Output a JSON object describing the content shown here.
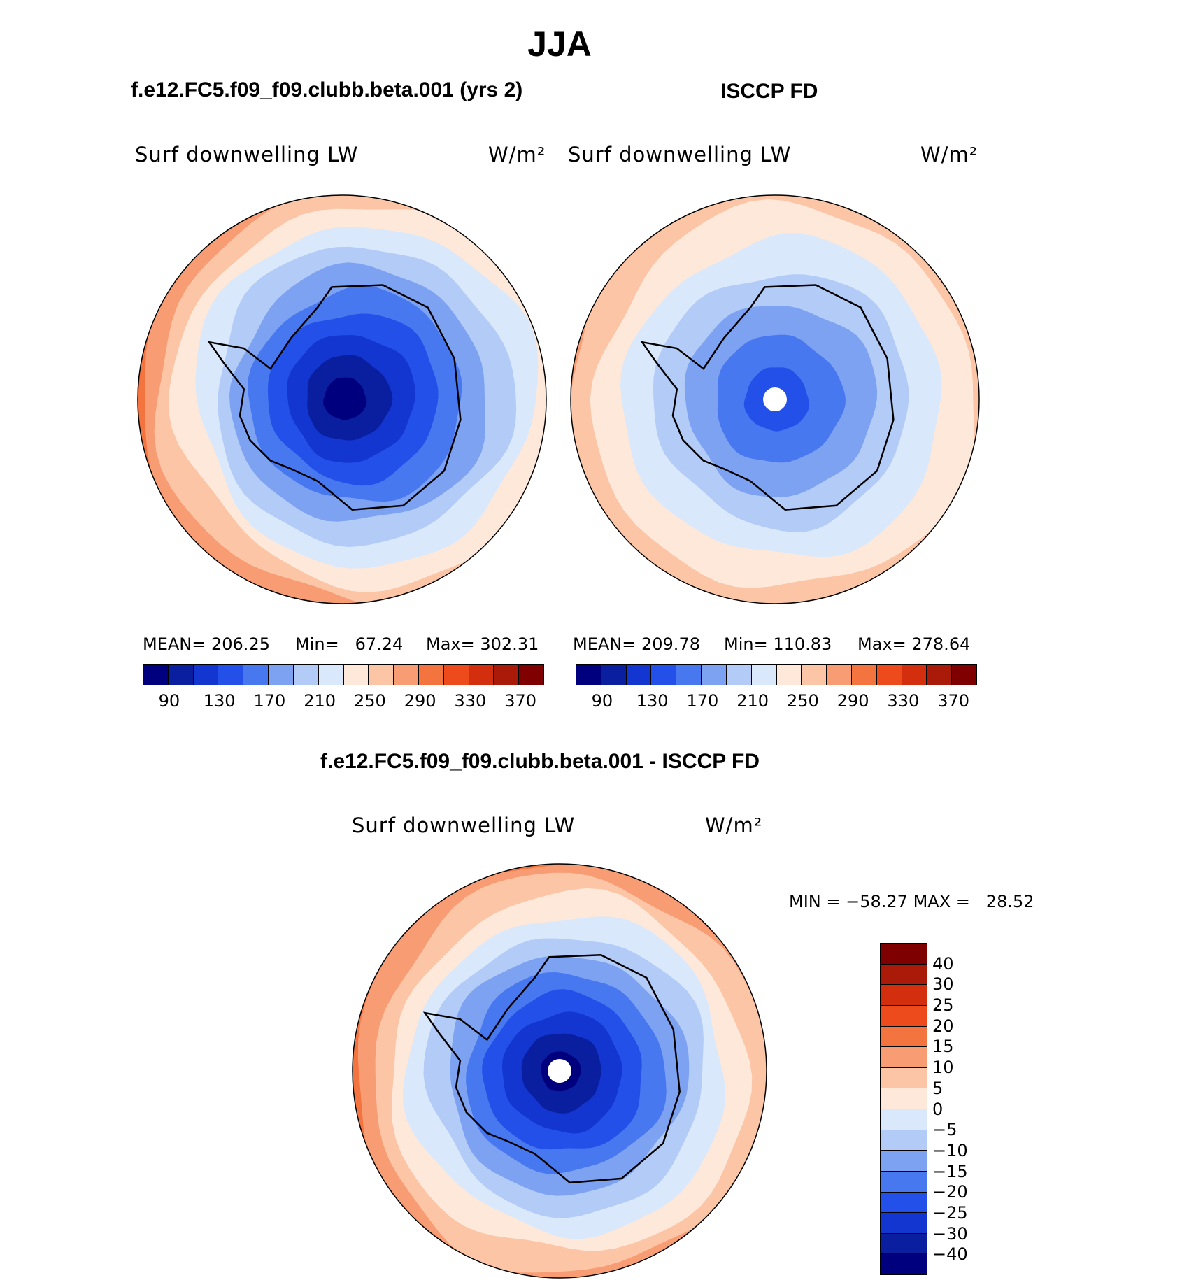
{
  "page_title": "JJA",
  "palette": {
    "abs": [
      "#00007f",
      "#0a1ea0",
      "#1236cf",
      "#2350e8",
      "#4878ef",
      "#7ea2f2",
      "#b3cbf7",
      "#d9e8fb",
      "#fde8da",
      "#fbc5a6",
      "#f89c74",
      "#f4743f",
      "#ee4b1c",
      "#d32e0e",
      "#a91b08",
      "#7f0000"
    ],
    "diff": [
      "#00007f",
      "#0a1ea0",
      "#1236cf",
      "#2350e8",
      "#4878ef",
      "#7ea2f2",
      "#b3cbf7",
      "#d9e8fb",
      "#fde8da",
      "#fbc5a6",
      "#f89c74",
      "#f4743f",
      "#ee4b1c",
      "#d32e0e",
      "#a91b08",
      "#7f0000"
    ]
  },
  "panel_left": {
    "heading": "f.e12.FC5.f09_f09.clubb.beta.001 (yrs 2)",
    "variable": "Surf downwelling LW",
    "units": "W/m²",
    "mean_label": "MEAN=",
    "mean": "206.25",
    "min_label": "Min=",
    "min": "67.24",
    "max_label": "Max=",
    "max": "302.31"
  },
  "panel_right": {
    "heading": "ISCCP FD",
    "variable": "Surf downwelling LW",
    "units": "W/m²",
    "mean_label": "MEAN=",
    "mean": "209.78",
    "min_label": "Min=",
    "min": "110.83",
    "max_label": "Max=",
    "max": "278.64"
  },
  "panel_diff": {
    "heading": "f.e12.FC5.f09_f09.clubb.beta.001 - ISCCP FD",
    "variable": "Surf downwelling LW",
    "units": "W/m²",
    "min_label": "MIN =",
    "min": "−58.27",
    "max_label": "MAX =",
    "max": "28.52"
  },
  "chart_data": [
    {
      "type": "heatmap",
      "projection": "south polar stereographic",
      "title": "f.e12.FC5.f09_f09.clubb.beta.001 (yrs 2)",
      "variable": "Surf downwelling LW",
      "units": "W/m²",
      "colorbar_ticks": [
        "90",
        "130",
        "170",
        "210",
        "250",
        "290",
        "330",
        "370"
      ],
      "levels": [
        70,
        90,
        110,
        130,
        150,
        170,
        190,
        210,
        230,
        250,
        270,
        290,
        310,
        330,
        350,
        370
      ],
      "statistics": {
        "mean": 206.25,
        "min": 67.24,
        "max": 302.31
      },
      "rings_level_index": [
        0,
        1,
        2,
        3,
        4,
        5,
        6,
        7,
        8,
        9,
        10,
        11
      ]
    },
    {
      "type": "heatmap",
      "projection": "south polar stereographic",
      "title": "ISCCP FD",
      "variable": "Surf downwelling LW",
      "units": "W/m²",
      "colorbar_ticks": [
        "90",
        "130",
        "170",
        "210",
        "250",
        "290",
        "330",
        "370"
      ],
      "levels": [
        70,
        90,
        110,
        130,
        150,
        170,
        190,
        210,
        230,
        250,
        270,
        290,
        310,
        330,
        350,
        370
      ],
      "statistics": {
        "mean": 209.78,
        "min": 110.83,
        "max": 278.64
      },
      "rings_level_index": [
        3,
        4,
        5,
        6,
        7,
        8,
        9,
        10
      ]
    },
    {
      "type": "heatmap",
      "projection": "south polar stereographic",
      "title": "f.e12.FC5.f09_f09.clubb.beta.001 - ISCCP FD",
      "variable": "Surf downwelling LW",
      "units": "W/m²",
      "colorbar_ticks": [
        "40",
        "30",
        "25",
        "20",
        "15",
        "10",
        "5",
        "0",
        "−5",
        "−10",
        "−15",
        "−20",
        "−25",
        "−30",
        "−40"
      ],
      "statistics": {
        "min": -58.27,
        "max": 28.52
      },
      "rings_level_index": [
        0,
        1,
        2,
        3,
        4,
        5,
        6,
        7,
        8,
        9,
        10,
        11,
        12
      ]
    }
  ]
}
